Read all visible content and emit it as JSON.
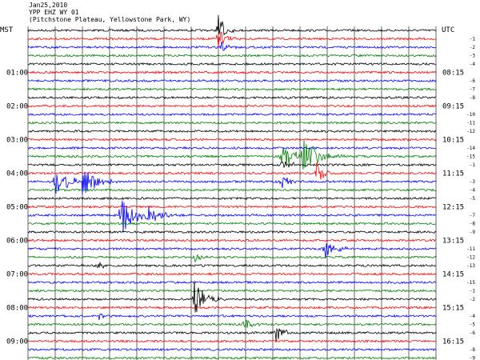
{
  "header": {
    "date": "Jan25,2010",
    "station": "YPP EHZ WY 01",
    "location": "(Pitchstone Plateau, Yellowstone Park, WY)"
  },
  "axes": {
    "left_label": "MST",
    "right_label": "UTC"
  },
  "chart_data": {
    "type": "line",
    "title": "Jan25,2010 YPP EHZ WY 01",
    "subtitle": "(Pitchstone Plateau, Yellowstone Park, WY)",
    "trace_colors": [
      "#000000",
      "#ff0000",
      "#0000ff",
      "#008000"
    ],
    "left_ticks": [
      {
        "label": "01:00",
        "row": 5
      },
      {
        "label": "02:00",
        "row": 9
      },
      {
        "label": "03:00",
        "row": 13
      },
      {
        "label": "04:00",
        "row": 17
      },
      {
        "label": "05:00",
        "row": 21
      },
      {
        "label": "06:00",
        "row": 25
      },
      {
        "label": "07:00",
        "row": 29
      },
      {
        "label": "08:00",
        "row": 33
      },
      {
        "label": "09:00",
        "row": 37
      }
    ],
    "right_ticks": [
      {
        "label": "08:15",
        "row": 5
      },
      {
        "label": "09:15",
        "row": 9
      },
      {
        "label": "10:15",
        "row": 13
      },
      {
        "label": "11:15",
        "row": 17
      },
      {
        "label": "12:15",
        "row": 21
      },
      {
        "label": "13:15",
        "row": 25
      },
      {
        "label": "14:15",
        "row": 29
      },
      {
        "label": "15:15",
        "row": 33
      },
      {
        "label": "16:15",
        "row": 37
      }
    ],
    "minute_labels": [
      "-1",
      "-2",
      "-3",
      "-4",
      "-5",
      "-6",
      "-7",
      "-8",
      "-9",
      "-10",
      "-11",
      "-12",
      "-13",
      "-14",
      "-15"
    ],
    "n_rows": 40,
    "events": [
      {
        "row": 0,
        "minute": 7.0,
        "amp": 22,
        "dur": 0.6
      },
      {
        "row": 1,
        "minute": 7.0,
        "amp": 14,
        "dur": 0.8
      },
      {
        "row": 2,
        "minute": 7.1,
        "amp": 8,
        "dur": 0.7
      },
      {
        "row": 15,
        "minute": 9.3,
        "amp": 18,
        "dur": 1.4
      },
      {
        "row": 15,
        "minute": 10.1,
        "amp": 26,
        "dur": 1.6
      },
      {
        "row": 16,
        "minute": 9.3,
        "amp": 10,
        "dur": 1.0
      },
      {
        "row": 17,
        "minute": 10.6,
        "amp": 14,
        "dur": 0.8
      },
      {
        "row": 18,
        "minute": 1.0,
        "amp": 22,
        "dur": 1.3
      },
      {
        "row": 18,
        "minute": 2.0,
        "amp": 22,
        "dur": 1.3
      },
      {
        "row": 18,
        "minute": 9.3,
        "amp": 12,
        "dur": 0.8
      },
      {
        "row": 22,
        "minute": 3.4,
        "amp": 26,
        "dur": 1.8
      },
      {
        "row": 22,
        "minute": 4.4,
        "amp": 14,
        "dur": 1.2
      },
      {
        "row": 26,
        "minute": 10.9,
        "amp": 16,
        "dur": 1.0
      },
      {
        "row": 27,
        "minute": 6.1,
        "amp": 8,
        "dur": 0.6
      },
      {
        "row": 28,
        "minute": 2.6,
        "amp": 6,
        "dur": 0.5
      },
      {
        "row": 32,
        "minute": 6.1,
        "amp": 24,
        "dur": 1.3
      },
      {
        "row": 35,
        "minute": 7.9,
        "amp": 10,
        "dur": 0.8
      },
      {
        "row": 34,
        "minute": 2.6,
        "amp": 7,
        "dur": 0.5
      },
      {
        "row": 36,
        "minute": 9.1,
        "amp": 12,
        "dur": 0.8
      }
    ]
  }
}
